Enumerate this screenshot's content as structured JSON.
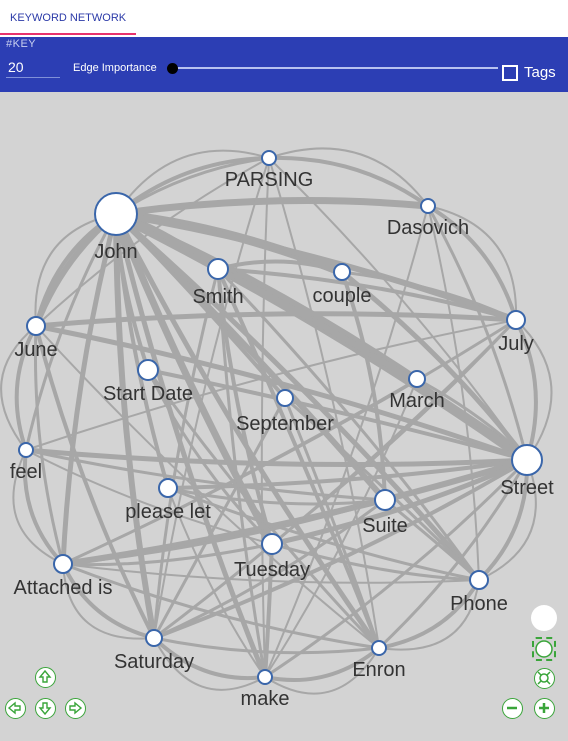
{
  "tab": {
    "label": "KEYWORD NETWORK"
  },
  "toolbar": {
    "key_label": "#KEY",
    "key_value": "20",
    "edge_label": "Edge Importance",
    "tags_label": "Tags",
    "edge_importance": 0,
    "tags_checked": false
  },
  "colors": {
    "toolbar": "#2c3eb4",
    "accent": "#e8336d",
    "edge": "#a7a7a7",
    "node_stroke": "#3a66aa",
    "control": "#3aa53a"
  },
  "graph": {
    "nodes": [
      "PARSING",
      "John",
      "Dasovich",
      "Smith",
      "couple",
      "June",
      "July",
      "Start Date",
      "March",
      "September",
      "feel",
      "Street",
      "please let",
      "Suite",
      "Tuesday",
      "Attached is",
      "Phone",
      "Saturday",
      "Enron",
      "make"
    ]
  },
  "controls": {
    "icons": [
      "circle-icon",
      "fit-icon",
      "center-icon",
      "arrow-up-icon",
      "arrow-left-icon",
      "arrow-down-icon",
      "arrow-right-icon",
      "zoom-out-icon",
      "zoom-in-icon"
    ]
  }
}
